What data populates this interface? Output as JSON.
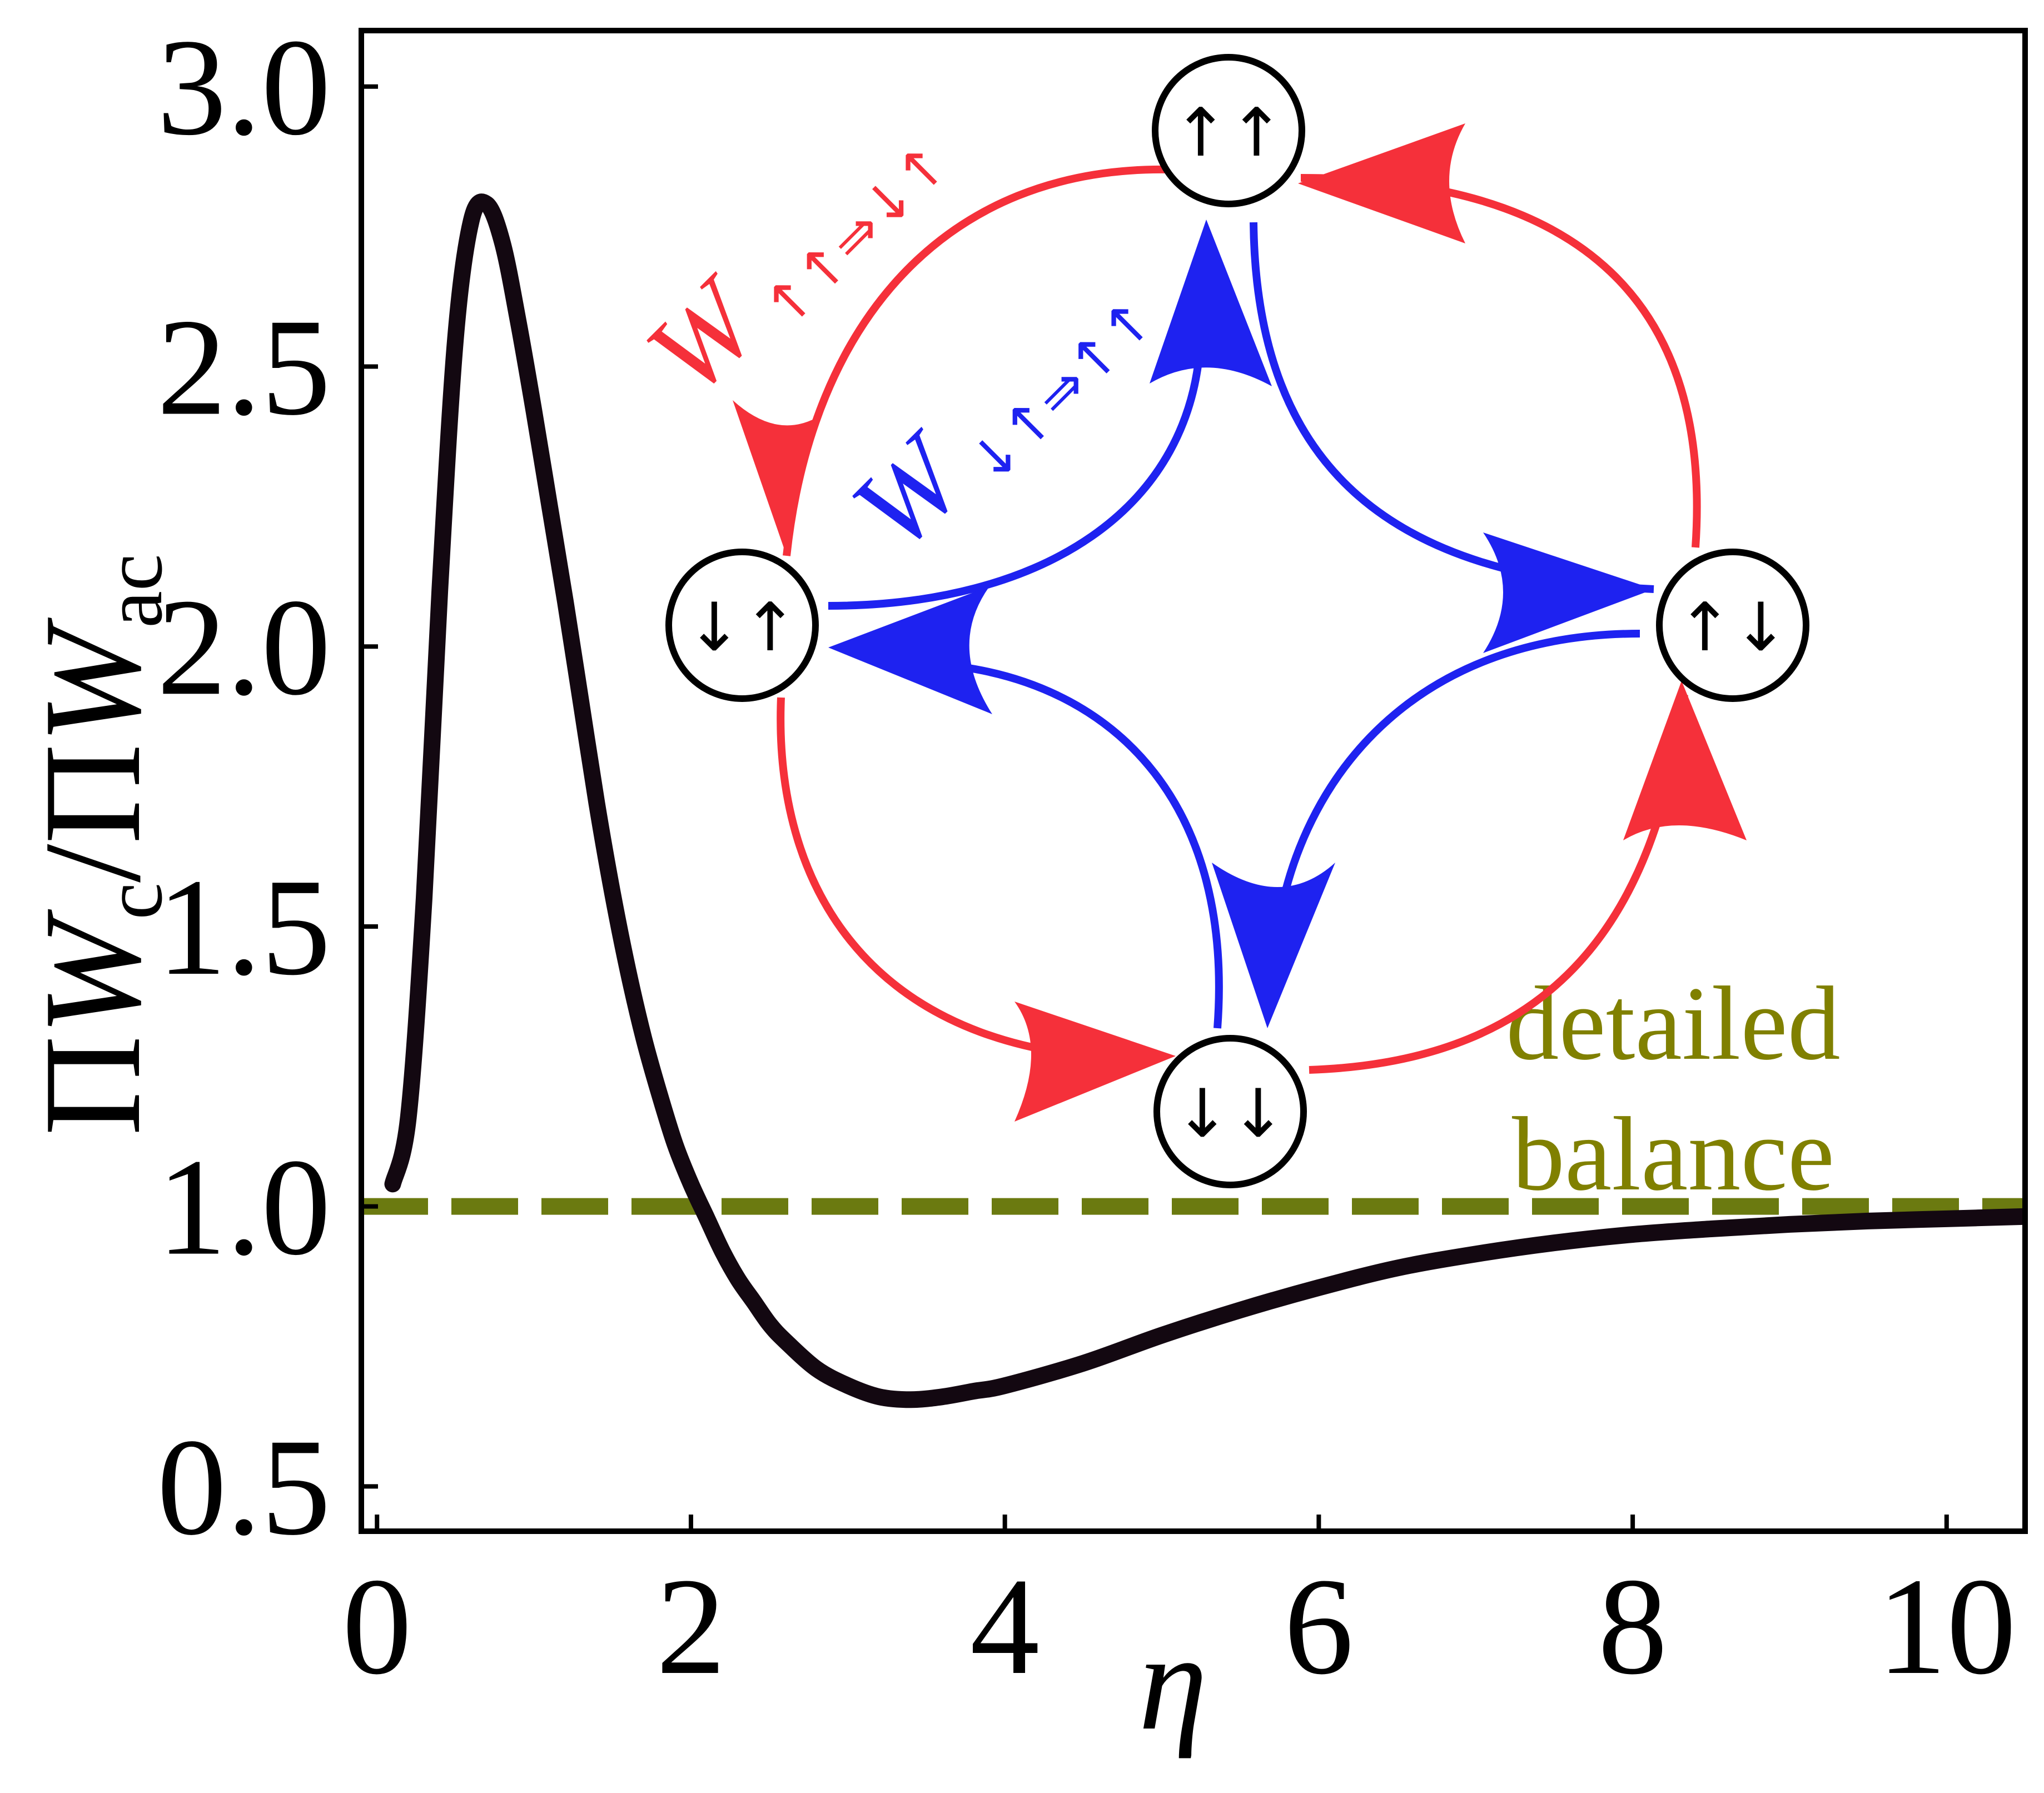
{
  "chart_data": {
    "type": "line",
    "xlabel": "η",
    "ylabel": {
      "prod": "Π",
      "var": "W",
      "sub1": "c",
      "sep": "/",
      "sub2": "ac"
    },
    "xlim": [
      -0.1,
      10.5
    ],
    "ylim": [
      0.42,
      3.1
    ],
    "xticks": [
      0,
      2,
      4,
      6,
      8,
      10
    ],
    "yticks": [
      0.5,
      1.0,
      1.5,
      2.0,
      2.5,
      3.0
    ],
    "ytick_labels": [
      "0.5",
      "1.0",
      "1.5",
      "2.0",
      "2.5",
      "3.0"
    ],
    "grid": false,
    "series": [
      {
        "color": "#130811",
        "x": [
          0.1,
          0.2,
          0.3,
          0.4,
          0.5,
          0.6,
          0.7,
          0.8,
          0.9,
          1.0,
          1.1,
          1.2,
          1.3,
          1.4,
          1.5,
          1.6,
          1.7,
          1.8,
          1.9,
          2.0,
          2.1,
          2.2,
          2.3,
          2.4,
          2.5,
          2.6,
          2.8,
          3.0,
          3.2,
          3.4,
          3.6,
          3.8,
          4.0,
          4.5,
          5.0,
          5.5,
          6.0,
          6.5,
          7.0,
          7.5,
          8.0,
          8.5,
          9.0,
          9.5,
          10.0,
          10.5
        ],
        "y": [
          1.04,
          1.16,
          1.55,
          2.1,
          2.55,
          2.76,
          2.79,
          2.72,
          2.58,
          2.42,
          2.25,
          2.08,
          1.9,
          1.72,
          1.56,
          1.42,
          1.3,
          1.2,
          1.11,
          1.04,
          0.98,
          0.92,
          0.87,
          0.83,
          0.79,
          0.76,
          0.71,
          0.68,
          0.66,
          0.655,
          0.66,
          0.67,
          0.68,
          0.72,
          0.77,
          0.815,
          0.855,
          0.89,
          0.915,
          0.935,
          0.95,
          0.96,
          0.968,
          0.974,
          0.978,
          0.982
        ]
      }
    ],
    "reference_line": {
      "y": 1.0,
      "style": "dashed",
      "color": "#6b7a10"
    },
    "annotation": {
      "line1": "detailed",
      "line2": "balance",
      "color": "#808000"
    }
  },
  "inset": {
    "states": {
      "uu": "↑↑",
      "du": "↓↑",
      "ud": "↑↓",
      "dd": "↓↓"
    },
    "red_rate": {
      "symbol": "W",
      "subscript": "↑↑⇒↓↑",
      "color": "#f5303a"
    },
    "blue_rate": {
      "symbol": "W",
      "subscript": "↓↑⇒↑↑",
      "color": "#1e22f0"
    }
  }
}
